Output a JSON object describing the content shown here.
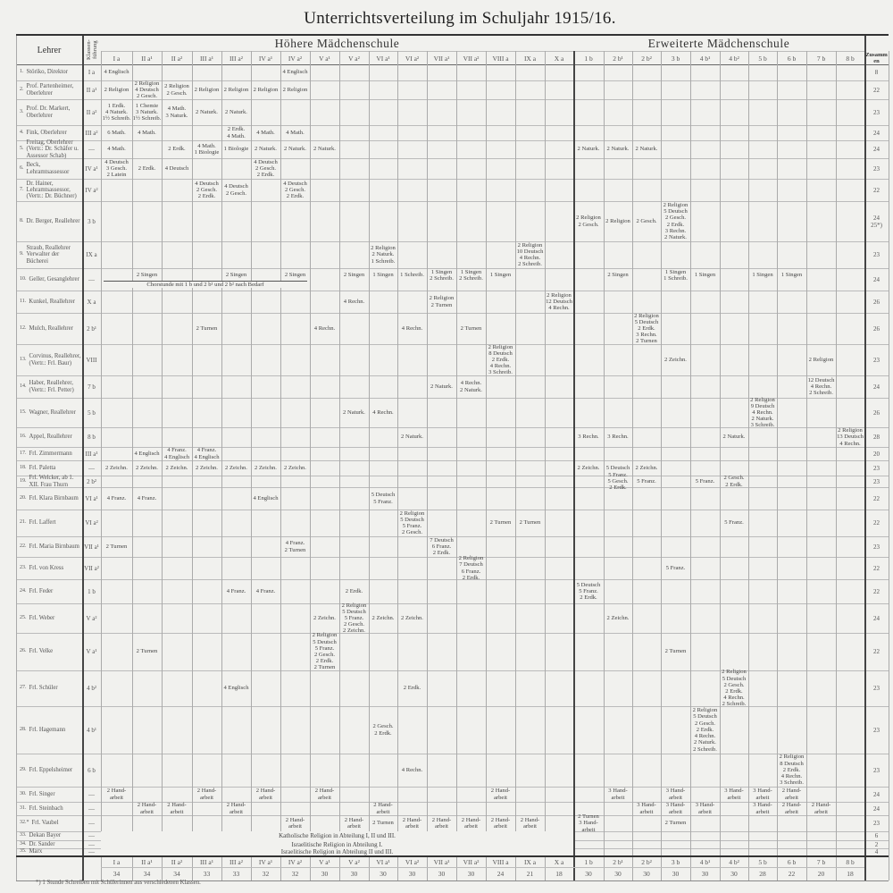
{
  "title": "Unterrichtsverteilung im Schuljahr 1915/16.",
  "headers": {
    "teacher": "Lehrer",
    "class_lead": "Klassen-führung",
    "school_a": "Höhere Mädchenschule",
    "school_b": "Erweiterte Mädchenschule",
    "total": "Zusammen"
  },
  "classes": [
    {
      "key": "Ia",
      "label": "I a",
      "total": "34"
    },
    {
      "key": "IIa1",
      "label": "II a¹",
      "total": "34"
    },
    {
      "key": "IIa2",
      "label": "II a²",
      "total": "34"
    },
    {
      "key": "IIIa1",
      "label": "III a¹",
      "total": "33"
    },
    {
      "key": "IIIa2",
      "label": "III a²",
      "total": "33"
    },
    {
      "key": "IVa1",
      "label": "IV a¹",
      "total": "32"
    },
    {
      "key": "IVa2",
      "label": "IV a²",
      "total": "32"
    },
    {
      "key": "Va1",
      "label": "V a¹",
      "total": "30"
    },
    {
      "key": "Va2",
      "label": "V a²",
      "total": "30"
    },
    {
      "key": "VIa1",
      "label": "VI a¹",
      "total": "30"
    },
    {
      "key": "VIa2",
      "label": "VI a²",
      "total": "30"
    },
    {
      "key": "VIIa1",
      "label": "VII a¹",
      "total": "30"
    },
    {
      "key": "VIIa2",
      "label": "VII a²",
      "total": "30"
    },
    {
      "key": "VIIIa",
      "label": "VIII a",
      "total": "24"
    },
    {
      "key": "IXa",
      "label": "IX a",
      "total": "21"
    },
    {
      "key": "Xa",
      "label": "X a",
      "total": "18"
    },
    {
      "key": "1b",
      "label": "1 b",
      "total": "30"
    },
    {
      "key": "2b1",
      "label": "2 b¹",
      "total": "30"
    },
    {
      "key": "2b2",
      "label": "2 b²",
      "total": "30"
    },
    {
      "key": "3b",
      "label": "3 b",
      "total": "30"
    },
    {
      "key": "4b1",
      "label": "4 b¹",
      "total": "30"
    },
    {
      "key": "4b2",
      "label": "4 b²",
      "total": "30"
    },
    {
      "key": "5b",
      "label": "5 b",
      "total": "28"
    },
    {
      "key": "6b",
      "label": "6 b",
      "total": "22"
    },
    {
      "key": "7b",
      "label": "7 b",
      "total": "20"
    },
    {
      "key": "8b",
      "label": "8 b",
      "total": "18"
    }
  ],
  "rows": [
    {
      "no": "1.",
      "teacher": "Störiko, Direktor",
      "lead": "I a",
      "total": "8",
      "cells": {
        "Ia": "4 Englisch",
        "IVa2": "4 Englisch"
      }
    },
    {
      "no": "2.",
      "teacher": "Prof. Partenheimer, Oberlehrer",
      "lead": "II a¹",
      "total": "22",
      "cells": {
        "Ia": "2 Religion",
        "IIa1": "2 Religion\n4 Deutsch\n2 Gesch.",
        "IIa2": "2 Religion\n2 Gesch.",
        "IIIa1": "2 Religion",
        "IIIa2": "2 Religion",
        "IVa1": "2 Religion",
        "IVa2": "2 Religion"
      }
    },
    {
      "no": "3.",
      "teacher": "Prof. Dr. Markert, Oberlehrer",
      "lead": "II a²",
      "total": "23",
      "cells": {
        "Ia": "1 Erdk.\n4 Naturk.\n1½ Schreib.",
        "IIa1": "1 Chemie\n3 Naturk.\n1½ Schreib.",
        "IIa2": "4 Math.\n3 Naturk.",
        "IIIa1": "2 Naturk.",
        "IIIa2": "2 Naturk."
      }
    },
    {
      "no": "4.",
      "teacher": "Fink, Oberlehrer",
      "lead": "III a²",
      "total": "24",
      "cells": {
        "Ia": "6 Math.",
        "IIa1": "4 Math.",
        "IIIa2": "2 Erdk.\n4 Math.",
        "IVa1": "4 Math.",
        "IVa2": "4 Math."
      }
    },
    {
      "no": "5.",
      "teacher": "Freitag, Oberlehrer (Vertr.: Dr. Schäfer u. Assessor Schab)",
      "lead": "—",
      "total": "24",
      "cells": {
        "Ia": "4 Math.",
        "IIa2": "2 Erdk.",
        "IIIa1": "4 Math.\n1 Biologie",
        "IIIa2": "1 Biologie",
        "IVa1": "2 Naturk.",
        "IVa2": "2 Naturk.",
        "Va1": "2 Naturk.",
        "1b": "2 Naturk.",
        "2b1": "2 Naturk.",
        "2b2": "2 Naturk."
      }
    },
    {
      "no": "6.",
      "teacher": "Beck, Lehramtsassessor",
      "lead": "IV a¹",
      "total": "23",
      "cells": {
        "Ia": "4 Deutsch\n3 Gesch.\n2 Latein",
        "IIa1": "2 Erdk.",
        "IIa2": "4 Deutsch",
        "IVa1": "4 Deutsch\n2 Gesch.\n2 Erdk."
      }
    },
    {
      "no": "7.",
      "teacher": "Dr. Hainer, Lehramtsassessor, (Vertr.: Dr. Büchner)",
      "lead": "IV a²",
      "total": "22",
      "cells": {
        "IIIa1": "4 Deutsch\n2 Gesch.\n2 Erdk.",
        "IIIa2": "4 Deutsch\n2 Gesch.",
        "IVa2": "4 Deutsch\n2 Gesch.\n2 Erdk."
      }
    },
    {
      "no": "8.",
      "teacher": "Dr. Berger, Reallehrer",
      "lead": "3 b",
      "total": "24\n25*)",
      "cells": {
        "1b": "2 Religion\n2 Gesch.",
        "2b1": "2 Religion",
        "2b2": "2 Gesch.",
        "3b": "2 Religion\n5 Deutsch\n2 Gesch.\n2 Erdk.\n3 Rechn.\n2 Naturk."
      }
    },
    {
      "no": "9.",
      "teacher": "Straub, Reallehrer Verwalter der Bücherei",
      "lead": "IX a",
      "total": "23",
      "cells": {
        "VIa1": "2 Religion\n2 Naturk.\n1 Schreib.",
        "IXa": "2 Religion\n10 Deutsch\n4 Rechn.\n2 Schreib."
      }
    },
    {
      "no": "10.",
      "teacher": "Geller, Gesanglehrer",
      "lead": "—",
      "total": "24",
      "cells": {
        "IIa1": "2 Singen",
        "IIIa2": "2 Singen",
        "IVa2": "2 Singen",
        "Va2": "2 Singen",
        "VIa1": "1 Singen",
        "VIa2": "1 Schreib.",
        "VIIa1": "1 Singen\n2 Schreib.",
        "VIIa2": "1 Singen\n2 Schreib.",
        "VIIIa": "1 Singen",
        "2b1": "2 Singen",
        "3b": "1 Singen\n1 Schreib.",
        "4b1": "1 Singen",
        "5b": "1 Singen",
        "6b": "1 Singen"
      },
      "note": {
        "from": "Ia",
        "to": "IVa2",
        "text": "Chorstunde mit 1 b und 2 b¹ und 2 b² nach Bedarf"
      }
    },
    {
      "no": "11.",
      "teacher": "Kunkel, Reallehrer",
      "lead": "X a",
      "total": "26",
      "cells": {
        "Va2": "4 Rechn.",
        "VIIa1": "2 Religion\n2 Turnen",
        "Xa": "2 Religion\n12 Deutsch\n4 Rechn."
      }
    },
    {
      "no": "12.",
      "teacher": "Mulch, Reallehrer",
      "lead": "2 b¹",
      "total": "26",
      "cells": {
        "IIIa1": "2 Turnen",
        "Va1": "4 Rechn.",
        "VIa2": "4 Rechn.",
        "VIIa2": "2 Turnen",
        "2b2": "2 Religion\n5 Deutsch\n2 Erdk.\n3 Rechn.\n2 Turnen"
      }
    },
    {
      "no": "13.",
      "teacher": "Corvinus, Reallehrer, (Vertr.: Frl. Baur)",
      "lead": "VIII",
      "total": "23",
      "cells": {
        "VIIIa": "2 Religion\n8 Deutsch\n2 Erdk.\n4 Rechn.\n3 Schreib.",
        "3b": "2 Zeichn.",
        "7b": "2 Religion"
      }
    },
    {
      "no": "14.",
      "teacher": "Haber, Reallehrer, (Vertr.: Frl. Petter)",
      "lead": "7 b",
      "total": "24",
      "cells": {
        "VIIa1": "2 Naturk.",
        "VIIa2": "4 Rechn.\n2 Naturk.",
        "7b": "12 Deutsch\n4 Rechn.\n2 Schreib."
      }
    },
    {
      "no": "15.",
      "teacher": "Wagner, Reallehrer",
      "lead": "5 b",
      "total": "26",
      "cells": {
        "Va2": "2 Naturk.",
        "VIa1": "4 Rechn.",
        "5b": "2 Religion\n9 Deutsch\n4 Rechn.\n2 Naturk.\n3 Schreib."
      }
    },
    {
      "no": "16.",
      "teacher": "Appel, Reallehrer",
      "lead": "8 b",
      "total": "28",
      "cells": {
        "VIa2": "2 Naturk.",
        "1b": "3 Rechn.",
        "2b1": "3 Rechn.",
        "4b2": "2 Naturk.",
        "8b": "2 Religion\n13 Deutsch\n4 Rechn."
      }
    },
    {
      "no": "17.",
      "teacher": "Frl. Zimmermann",
      "lead": "III a¹",
      "total": "20",
      "cells": {
        "IIa1": "4 Englisch",
        "IIa2": "4 Franz.\n4 Englisch",
        "IIIa1": "4 Franz.\n4 Englisch"
      }
    },
    {
      "no": "18.",
      "teacher": "Frl. Paletta",
      "lead": "—",
      "total": "23",
      "cells": {
        "Ia": "2 Zeichn.",
        "IIa1": "2 Zeichn.",
        "IIa2": "2 Zeichn.",
        "IIIa1": "2 Zeichn.",
        "IIIa2": "2 Zeichn.",
        "IVa1": "2 Zeichn.",
        "IVa2": "2 Zeichn.",
        "1b": "2 Zeichn.",
        "2b1": "5 Deutsch",
        "2b2": "2 Zeichn."
      }
    },
    {
      "no": "19.",
      "teacher": "Frl. Welcker, ab 1. XII. Frau Thurn",
      "lead": "2 b²",
      "total": "23",
      "cells": {
        "2b1": "5 Franz.\n5 Gesch.\n2 Erdk.",
        "2b2": "5 Franz.",
        "4b1": "5 Franz.",
        "4b2": "2 Gesch.\n2 Erdk."
      }
    },
    {
      "no": "20.",
      "teacher": "Frl. Klara Birnbaum",
      "lead": "VI a¹",
      "total": "22",
      "cells": {
        "Ia": "4 Franz.",
        "IIa1": "4 Franz.",
        "IVa1": "4 Englisch",
        "VIa1": "5 Deutsch\n5 Franz."
      }
    },
    {
      "no": "21.",
      "teacher": "Frl. Laffert",
      "lead": "VI a²",
      "total": "22",
      "cells": {
        "VIa2": "2 Religion\n5 Deutsch\n5 Franz.\n2 Gesch.",
        "VIIIa": "2 Turnen",
        "IXa": "2 Turnen",
        "4b2": "5 Franz."
      }
    },
    {
      "no": "22.",
      "teacher": "Frl. Maria Birnbaum",
      "lead": "VII a¹",
      "total": "23",
      "cells": {
        "Ia": "2 Turnen",
        "IVa2": "4 Franz.\n2 Turnen",
        "VIIa1": "7 Deutsch\n6 Franz.\n2 Erdk."
      }
    },
    {
      "no": "23.",
      "teacher": "Frl. von Kress",
      "lead": "VII a²",
      "total": "22",
      "cells": {
        "VIIa2": "2 Religion\n7 Deutsch\n6 Franz.\n2 Erdk.",
        "3b": "5 Franz."
      }
    },
    {
      "no": "24.",
      "teacher": "Frl. Feder",
      "lead": "1 b",
      "total": "22",
      "cells": {
        "IIIa2": "4 Franz.",
        "IVa1": "4 Franz.",
        "Va2": "2 Erdk.",
        "1b": "5 Deutsch\n5 Franz.\n2 Erdk."
      }
    },
    {
      "no": "25.",
      "teacher": "Frl. Weber",
      "lead": "V a²",
      "total": "24",
      "cells": {
        "Va1": "2 Zeichn.",
        "Va2": "2 Religion\n5 Deutsch\n5 Franz.\n2 Gesch.\n2 Zeichn.",
        "VIa1": "2 Zeichn.",
        "VIa2": "2 Zeichn.",
        "2b1": "2 Zeichn."
      }
    },
    {
      "no": "26.",
      "teacher": "Frl. Velke",
      "lead": "V a¹",
      "total": "22",
      "cells": {
        "IIa1": "2 Turnen",
        "Va1": "2 Religion\n5 Deutsch\n5 Franz.\n2 Gesch.\n2 Erdk.\n2 Turnen",
        "3b": "2 Turnen"
      }
    },
    {
      "no": "27.",
      "teacher": "Frl. Schüler",
      "lead": "4 b²",
      "total": "23",
      "cells": {
        "IIIa2": "4 Englisch",
        "VIa2": "2 Erdk.",
        "4b2": "2 Religion\n5 Deutsch\n2 Gesch.\n2 Erdk.\n4 Rechn.\n2 Schreib."
      }
    },
    {
      "no": "28.",
      "teacher": "Frl. Hagemann",
      "lead": "4 b¹",
      "total": "23",
      "cells": {
        "VIa1": "2 Gesch.\n2 Erdk.",
        "4b1": "2 Religion\n5 Deutsch\n2 Gesch.\n2 Erdk.\n4 Rechn.\n2 Naturk.\n2 Schreib."
      }
    },
    {
      "no": "29.",
      "teacher": "Frl. Eppelsheimer",
      "lead": "6 b",
      "total": "23",
      "cells": {
        "VIa2": "4 Rechn.",
        "6b": "2 Religion\n8 Deutsch\n2 Erdk.\n4 Rechn.\n3 Schreib."
      }
    },
    {
      "no": "30.",
      "teacher": "Frl. Singer",
      "lead": "—",
      "total": "24",
      "cells": {
        "Ia": "2 Hand-\narbeit",
        "IIIa1": "2 Hand-\narbeit",
        "IVa1": "2 Hand-\narbeit",
        "Va1": "2 Hand-\narbeit",
        "VIIIa": "2 Hand-\narbeit",
        "2b1": "3 Hand-\narbeit",
        "3b": "3 Hand-\narbeit",
        "4b2": "3 Hand-\narbeit",
        "5b": "3 Hand-\narbeit",
        "6b": "2 Hand-\narbeit"
      }
    },
    {
      "no": "31.",
      "teacher": "Frl. Steinbach",
      "lead": "—",
      "total": "24",
      "cells": {
        "IIa1": "2 Hand-\narbeit",
        "IIa2": "2 Hand-\narbeit",
        "IIIa2": "2 Hand-\narbeit",
        "VIa1": "2 Hand-\narbeit",
        "2b2": "3 Hand-\narbeit",
        "3b": "3 Hand-\narbeit",
        "4b1": "3 Hand-\narbeit",
        "5b": "3 Hand-\narbeit",
        "6b": "2 Hand-\narbeit",
        "7b": "2 Hand-\narbeit"
      }
    },
    {
      "no": "32.*",
      "teacher": "Frl. Vaubel",
      "lead": "—",
      "total": "23",
      "cells": {
        "IVa2": "2 Hand-\narbeit",
        "Va2": "2 Hand-\narbeit",
        "VIa1": "2 Turnen",
        "VIa2": "2 Hand-\narbeit",
        "VIIa1": "2 Hand-\narbeit",
        "VIIa2": "2 Hand-\narbeit",
        "VIIIa": "2 Hand-\narbeit",
        "IXa": "2 Hand-\narbeit",
        "1b": "2 Turnen\n3 Hand-\narbeit",
        "3b": "2 Turnen"
      }
    },
    {
      "no": "33.",
      "teacher": "Dekan Bayer",
      "lead": "—",
      "total": "6",
      "span": {
        "from": "Ia",
        "to": "Xa",
        "text": "Katholische Religion in Abteilung I, II und III."
      }
    },
    {
      "no": "34.",
      "teacher": "Dr. Sander",
      "lead": "—",
      "total": "2",
      "span": {
        "from": "Ia",
        "to": "Xa",
        "text": "Israelitische Religion in Abteilung I."
      }
    },
    {
      "no": "35.",
      "teacher": "Marx",
      "lead": "—",
      "total": "4",
      "span": {
        "from": "Ia",
        "to": "Xa",
        "text": "Israelitische Religion in Abteilung II und III."
      }
    }
  ],
  "footnote": "*) 1 Stunde Schreiben mit Schülerinnen aus verschiedenen Klassen."
}
